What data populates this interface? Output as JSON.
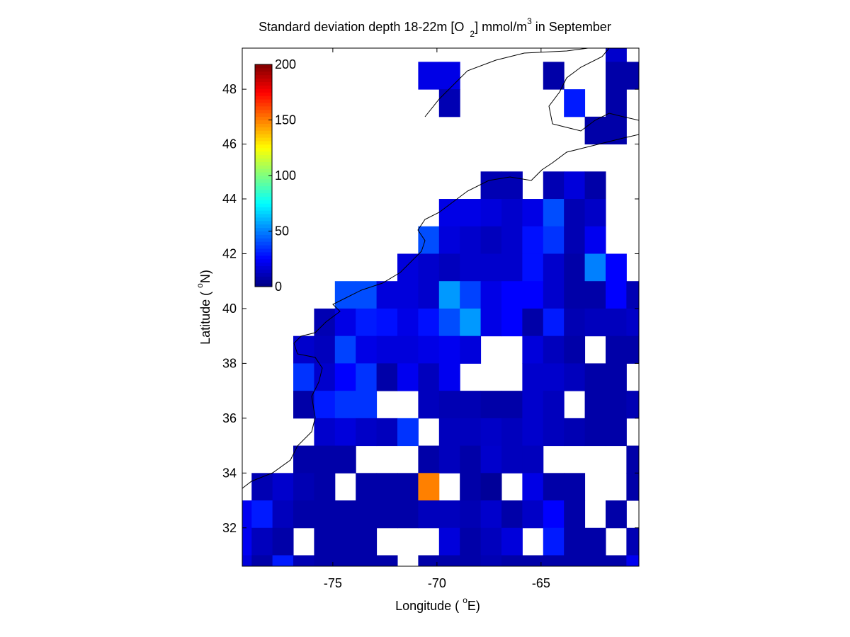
{
  "chart_data": {
    "type": "heatmap",
    "title": [
      "Standard deviation depth 18-22m [O",
      "2",
      "] mmol/m",
      "3",
      " in September"
    ],
    "xlabel": [
      "Longitude ( ",
      "o",
      "E)"
    ],
    "ylabel": [
      "Latitude ( ",
      "o",
      "N)"
    ],
    "xlim": [
      -79.35,
      -60.3
    ],
    "ylim": [
      30.6,
      49.5
    ],
    "xticks": [
      -75,
      -70,
      -65
    ],
    "yticks": [
      32,
      34,
      36,
      38,
      40,
      42,
      44,
      46,
      48
    ],
    "x": [
      -79.4,
      -78.4,
      -77.4,
      -76.4,
      -75.4,
      -74.4,
      -73.4,
      -72.4,
      -71.4,
      -70.4,
      -69.4,
      -68.4,
      -67.4,
      -66.4,
      -65.4,
      -64.4,
      -63.4,
      -62.4,
      -61.4,
      -60.4
    ],
    "y": [
      49.5,
      48.5,
      47.5,
      46.5,
      45.5,
      44.5,
      43.5,
      42.5,
      41.5,
      40.5,
      39.5,
      38.5,
      37.5,
      36.5,
      35.5,
      34.5,
      33.5,
      32.5,
      31.5,
      30.5
    ],
    "z": [
      [
        null,
        null,
        null,
        null,
        null,
        null,
        null,
        null,
        null,
        null,
        null,
        null,
        null,
        null,
        null,
        null,
        null,
        null,
        15,
        null
      ],
      [
        null,
        null,
        null,
        null,
        null,
        null,
        null,
        null,
        null,
        20,
        20,
        null,
        null,
        null,
        null,
        8,
        null,
        null,
        8,
        8
      ],
      [
        null,
        null,
        null,
        null,
        null,
        null,
        null,
        null,
        null,
        null,
        10,
        null,
        null,
        null,
        null,
        null,
        30,
        null,
        8,
        null
      ],
      [
        null,
        null,
        null,
        null,
        null,
        null,
        null,
        null,
        null,
        null,
        null,
        null,
        null,
        null,
        null,
        null,
        null,
        8,
        8,
        null
      ],
      [
        null,
        null,
        null,
        null,
        null,
        null,
        null,
        null,
        null,
        null,
        null,
        null,
        null,
        null,
        null,
        null,
        null,
        null,
        null,
        null
      ],
      [
        null,
        null,
        null,
        null,
        null,
        null,
        null,
        null,
        null,
        null,
        null,
        null,
        10,
        10,
        null,
        10,
        18,
        8,
        null,
        null
      ],
      [
        null,
        null,
        null,
        null,
        null,
        null,
        null,
        null,
        null,
        null,
        20,
        20,
        18,
        15,
        20,
        40,
        10,
        14,
        null,
        null
      ],
      [
        null,
        null,
        null,
        null,
        null,
        null,
        null,
        null,
        null,
        40,
        18,
        15,
        12,
        15,
        28,
        35,
        10,
        22,
        null,
        null
      ],
      [
        null,
        null,
        null,
        null,
        null,
        null,
        null,
        null,
        18,
        15,
        12,
        15,
        15,
        15,
        28,
        15,
        8,
        50,
        25,
        null
      ],
      [
        null,
        null,
        null,
        null,
        null,
        40,
        40,
        18,
        18,
        15,
        55,
        38,
        20,
        25,
        25,
        15,
        8,
        8,
        25,
        10
      ],
      [
        null,
        null,
        null,
        null,
        10,
        20,
        30,
        28,
        20,
        28,
        40,
        55,
        20,
        25,
        8,
        30,
        10,
        12,
        12,
        14
      ],
      [
        null,
        null,
        null,
        15,
        12,
        38,
        20,
        18,
        18,
        20,
        22,
        18,
        null,
        null,
        18,
        12,
        8,
        null,
        8,
        8
      ],
      [
        null,
        null,
        null,
        35,
        15,
        25,
        35,
        8,
        22,
        12,
        22,
        null,
        null,
        null,
        15,
        15,
        12,
        8,
        8,
        null
      ],
      [
        null,
        null,
        null,
        8,
        30,
        35,
        35,
        null,
        null,
        12,
        10,
        10,
        8,
        8,
        15,
        12,
        null,
        8,
        8,
        10
      ],
      [
        null,
        null,
        null,
        null,
        15,
        18,
        14,
        12,
        35,
        null,
        12,
        12,
        14,
        12,
        15,
        12,
        10,
        8,
        8,
        null
      ],
      [
        null,
        null,
        null,
        8,
        8,
        8,
        null,
        null,
        null,
        8,
        12,
        8,
        15,
        12,
        12,
        null,
        null,
        null,
        null,
        8
      ],
      [
        null,
        10,
        15,
        10,
        8,
        null,
        8,
        8,
        8,
        150,
        null,
        8,
        5,
        null,
        20,
        8,
        8,
        null,
        null,
        8
      ],
      [
        22,
        30,
        12,
        8,
        8,
        8,
        8,
        8,
        8,
        12,
        12,
        10,
        15,
        8,
        14,
        25,
        8,
        null,
        8,
        null
      ],
      [
        22,
        12,
        8,
        null,
        8,
        8,
        8,
        null,
        null,
        null,
        18,
        8,
        12,
        18,
        null,
        30,
        8,
        8,
        null,
        10
      ],
      [
        18,
        8,
        30,
        10,
        8,
        8,
        8,
        8,
        null,
        8,
        8,
        8,
        10,
        8,
        8,
        8,
        8,
        8,
        8,
        22
      ]
    ],
    "colorbar": {
      "clim": [
        0,
        200
      ],
      "ticks": [
        0,
        50,
        100,
        150,
        200
      ]
    }
  }
}
